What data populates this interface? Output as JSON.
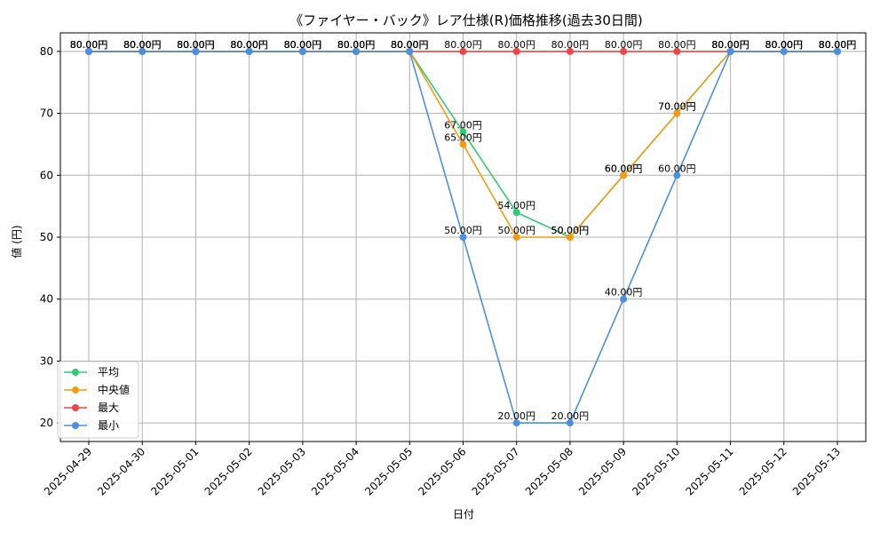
{
  "chart_data": {
    "type": "line",
    "title": "《ファイヤー・バック》レア仕様(R)価格推移(過去30日間)",
    "xlabel": "日付",
    "ylabel": "値 (円)",
    "ylim": [
      17,
      83
    ],
    "yticks": [
      20,
      30,
      40,
      50,
      60,
      70,
      80
    ],
    "grid": true,
    "legend_position": "lower-left",
    "value_suffix": "円",
    "categories": [
      "2025-04-29",
      "2025-04-30",
      "2025-05-01",
      "2025-05-02",
      "2025-05-03",
      "2025-05-04",
      "2025-05-05",
      "2025-05-06",
      "2025-05-07",
      "2025-05-08",
      "2025-05-09",
      "2025-05-10",
      "2025-05-11",
      "2025-05-12",
      "2025-05-13"
    ],
    "series": [
      {
        "name": "平均",
        "color": "#2ecc71",
        "values": [
          80,
          80,
          80,
          80,
          80,
          80,
          80,
          67,
          54,
          50,
          60,
          70,
          80,
          80,
          80
        ]
      },
      {
        "name": "中央値",
        "color": "#f39c12",
        "values": [
          80,
          80,
          80,
          80,
          80,
          80,
          80,
          65,
          50,
          50,
          60,
          70,
          80,
          80,
          80
        ]
      },
      {
        "name": "最大",
        "color": "#ef4444",
        "values": [
          80,
          80,
          80,
          80,
          80,
          80,
          80,
          80,
          80,
          80,
          80,
          80,
          80,
          80,
          80
        ]
      },
      {
        "name": "最小",
        "color": "#4a90e2",
        "values": [
          80,
          80,
          80,
          80,
          80,
          80,
          80,
          50,
          20,
          20,
          40,
          60,
          80,
          80,
          80
        ]
      }
    ]
  }
}
